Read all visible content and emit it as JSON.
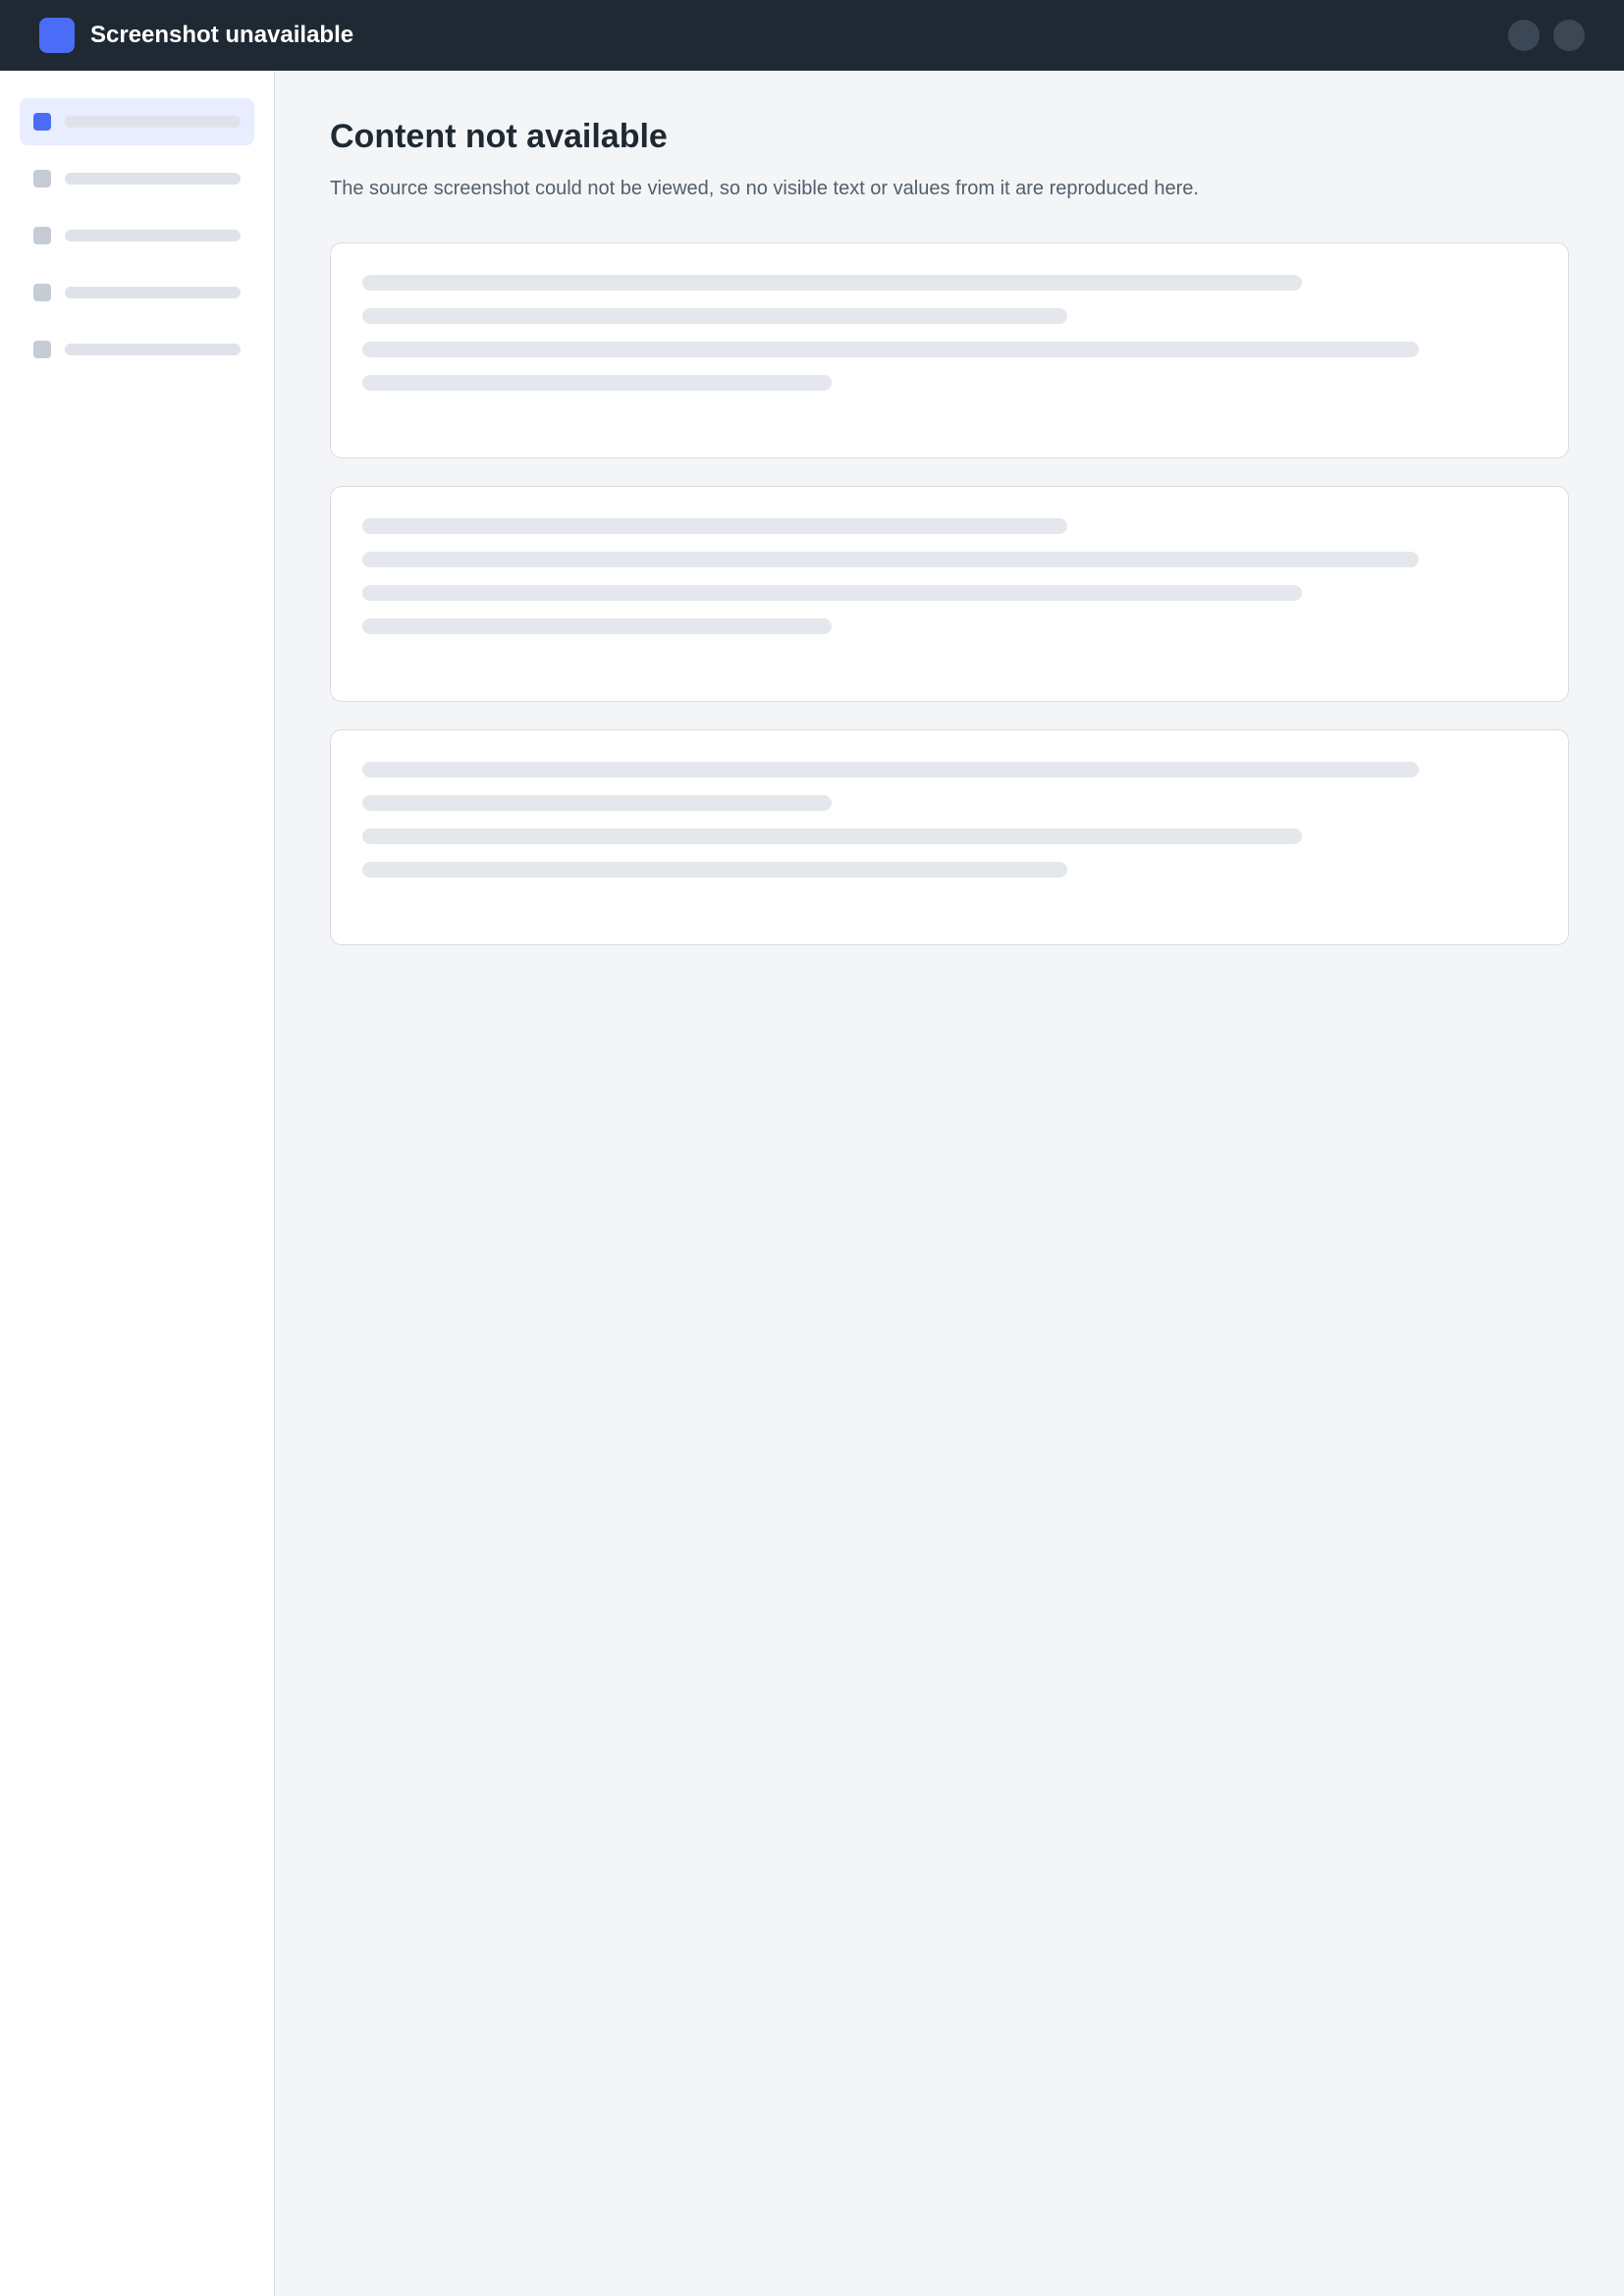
{
  "header": {
    "title": "Screenshot unavailable"
  },
  "main": {
    "title": "Content not available",
    "notice": "The source screenshot could not be viewed, so no visible text or values from it are reproduced here."
  },
  "colors": {
    "accent": "#4a6cf7",
    "header_background": "#1f2933"
  }
}
